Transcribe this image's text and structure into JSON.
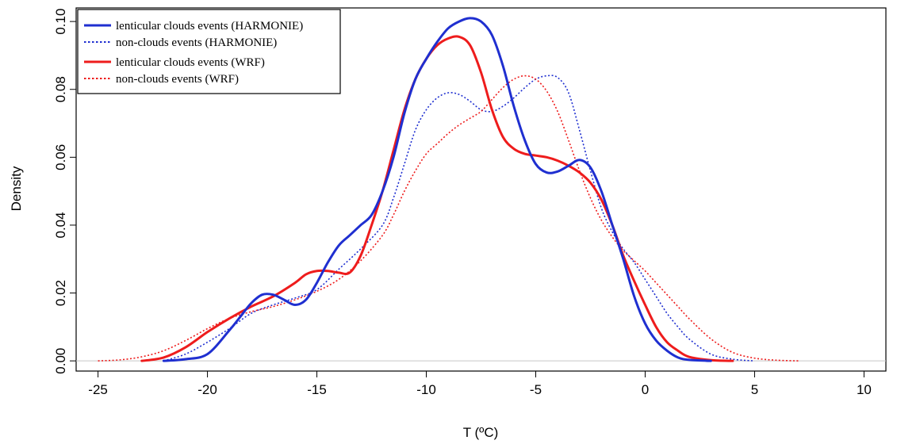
{
  "chart_data": {
    "type": "line",
    "title": "",
    "xlabel": "T (ºC)",
    "ylabel": "Density",
    "xlim": [
      -26,
      11
    ],
    "ylim": [
      -0.003,
      0.104
    ],
    "xticks": [
      -25,
      -20,
      -15,
      -10,
      -5,
      0,
      5,
      10
    ],
    "xtick_labels": [
      "-25",
      "-20",
      "-15",
      "-10",
      "-5",
      "0",
      "5",
      "10"
    ],
    "yticks": [
      0.0,
      0.02,
      0.04,
      0.06,
      0.08,
      0.1
    ],
    "ytick_labels": [
      "0.00",
      "0.02",
      "0.04",
      "0.06",
      "0.08",
      "0.10"
    ],
    "baseline": 0,
    "grid": false,
    "legend_position": "top-left",
    "series": [
      {
        "name": "lenticular  clouds events (HARMONIE)",
        "color": "#1f2fd0",
        "style": "solid",
        "x": [
          -22,
          -21,
          -20,
          -19,
          -18.5,
          -18,
          -17.5,
          -17,
          -16.5,
          -16,
          -15.5,
          -15,
          -14.5,
          -14,
          -13.5,
          -13,
          -12.5,
          -12,
          -11.5,
          -11,
          -10.5,
          -10,
          -9.5,
          -9,
          -8.5,
          -8,
          -7.5,
          -7,
          -6.5,
          -6,
          -5.5,
          -5,
          -4.5,
          -4,
          -3.5,
          -3,
          -2.5,
          -2,
          -1.5,
          -1,
          -0.5,
          0,
          0.5,
          1,
          1.5,
          2,
          3
        ],
        "y": [
          0,
          0.0005,
          0.002,
          0.009,
          0.013,
          0.017,
          0.0195,
          0.0195,
          0.018,
          0.0165,
          0.018,
          0.023,
          0.029,
          0.034,
          0.037,
          0.04,
          0.043,
          0.05,
          0.06,
          0.073,
          0.083,
          0.089,
          0.094,
          0.098,
          0.1,
          0.101,
          0.1,
          0.096,
          0.087,
          0.075,
          0.065,
          0.058,
          0.0555,
          0.0558,
          0.0575,
          0.0592,
          0.057,
          0.05,
          0.04,
          0.03,
          0.019,
          0.011,
          0.006,
          0.003,
          0.001,
          0.0003,
          0
        ]
      },
      {
        "name": "non-clouds events (HARMONIE)",
        "color": "#1f2fd0",
        "style": "dotted",
        "x": [
          -22,
          -21,
          -20,
          -19,
          -18,
          -17,
          -16,
          -15,
          -14,
          -13,
          -12,
          -11.5,
          -11,
          -10.5,
          -10,
          -9.5,
          -9,
          -8.5,
          -8,
          -7.5,
          -7,
          -6.5,
          -6,
          -5.5,
          -5,
          -4.5,
          -4,
          -3.5,
          -3,
          -2.5,
          -2,
          -1.5,
          -1,
          -0.5,
          0,
          0.5,
          1,
          1.5,
          2,
          3,
          4,
          5
        ],
        "y": [
          0,
          0.002,
          0.0055,
          0.0095,
          0.014,
          0.0165,
          0.0185,
          0.021,
          0.027,
          0.033,
          0.04,
          0.048,
          0.058,
          0.068,
          0.074,
          0.0775,
          0.079,
          0.0785,
          0.0765,
          0.074,
          0.0735,
          0.075,
          0.0775,
          0.0805,
          0.083,
          0.084,
          0.0835,
          0.079,
          0.068,
          0.056,
          0.045,
          0.038,
          0.033,
          0.029,
          0.024,
          0.019,
          0.014,
          0.01,
          0.0065,
          0.002,
          0.0005,
          0
        ]
      },
      {
        "name": "lenticular  clouds events (WRF)",
        "color": "#ee1c1c",
        "style": "solid",
        "x": [
          -23,
          -22,
          -21,
          -20,
          -19,
          -18,
          -17,
          -16,
          -15.5,
          -15,
          -14.5,
          -14,
          -13.5,
          -13,
          -12.5,
          -12,
          -11.5,
          -11,
          -10.5,
          -10,
          -9.5,
          -9,
          -8.5,
          -8,
          -7.5,
          -7,
          -6.5,
          -6,
          -5.5,
          -5,
          -4.5,
          -4,
          -3.5,
          -3,
          -2.5,
          -2,
          -1.5,
          -1,
          -0.5,
          0,
          0.5,
          1,
          1.5,
          2,
          3,
          4
        ],
        "y": [
          0,
          0.001,
          0.004,
          0.0085,
          0.0125,
          0.016,
          0.019,
          0.023,
          0.0255,
          0.0265,
          0.0265,
          0.026,
          0.026,
          0.031,
          0.04,
          0.05,
          0.062,
          0.074,
          0.083,
          0.089,
          0.093,
          0.095,
          0.0955,
          0.093,
          0.085,
          0.074,
          0.066,
          0.0625,
          0.061,
          0.0605,
          0.06,
          0.059,
          0.0575,
          0.0555,
          0.0525,
          0.0475,
          0.04,
          0.031,
          0.0235,
          0.0165,
          0.01,
          0.0055,
          0.003,
          0.0012,
          0.0002,
          0
        ]
      },
      {
        "name": "non-clouds events (WRF)",
        "color": "#ee1c1c",
        "style": "dotted",
        "x": [
          -25,
          -24,
          -23,
          -22,
          -21,
          -20,
          -19,
          -18,
          -17,
          -16,
          -15,
          -14,
          -13,
          -12,
          -11.5,
          -11,
          -10.5,
          -10,
          -9.5,
          -9,
          -8.5,
          -8,
          -7.5,
          -7,
          -6.5,
          -6,
          -5.5,
          -5,
          -4.5,
          -4,
          -3.5,
          -3,
          -2.5,
          -2,
          -1.5,
          -1,
          -0.5,
          0,
          0.5,
          1,
          1.5,
          2,
          3,
          4,
          5,
          6,
          7
        ],
        "y": [
          0,
          0.0003,
          0.0012,
          0.003,
          0.006,
          0.0095,
          0.0125,
          0.0145,
          0.016,
          0.018,
          0.0205,
          0.024,
          0.0295,
          0.037,
          0.043,
          0.05,
          0.056,
          0.061,
          0.064,
          0.067,
          0.0695,
          0.0715,
          0.0735,
          0.077,
          0.0805,
          0.083,
          0.084,
          0.083,
          0.0795,
          0.0735,
          0.065,
          0.056,
          0.048,
          0.0415,
          0.0365,
          0.0325,
          0.0295,
          0.0265,
          0.023,
          0.0195,
          0.016,
          0.0125,
          0.0065,
          0.0025,
          0.0008,
          0.0002,
          0
        ]
      }
    ]
  }
}
